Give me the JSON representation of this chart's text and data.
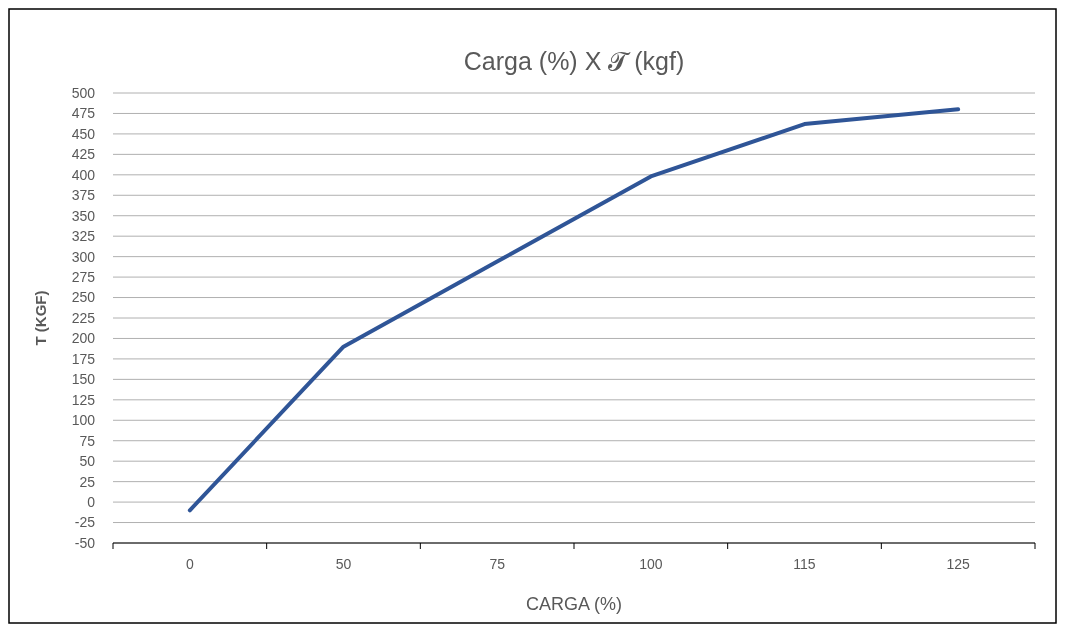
{
  "chart_data": {
    "type": "line",
    "title": "Carga (%) X 𝓣 (kgf)",
    "xlabel": "CARGA (%)",
    "ylabel": "T (KGF)",
    "categories": [
      "0",
      "50",
      "75",
      "100",
      "115",
      "125"
    ],
    "series": [
      {
        "color": "#2f5597",
        "values": [
          -10,
          190,
          294,
          398,
          462,
          480
        ]
      }
    ],
    "ylim": [
      -50,
      500
    ],
    "yticks": [
      -50,
      -25,
      0,
      25,
      50,
      75,
      100,
      125,
      150,
      175,
      200,
      225,
      250,
      275,
      300,
      325,
      350,
      375,
      400,
      425,
      450,
      475,
      500
    ],
    "grid": "y",
    "marker": "none",
    "line_style": "solid"
  }
}
